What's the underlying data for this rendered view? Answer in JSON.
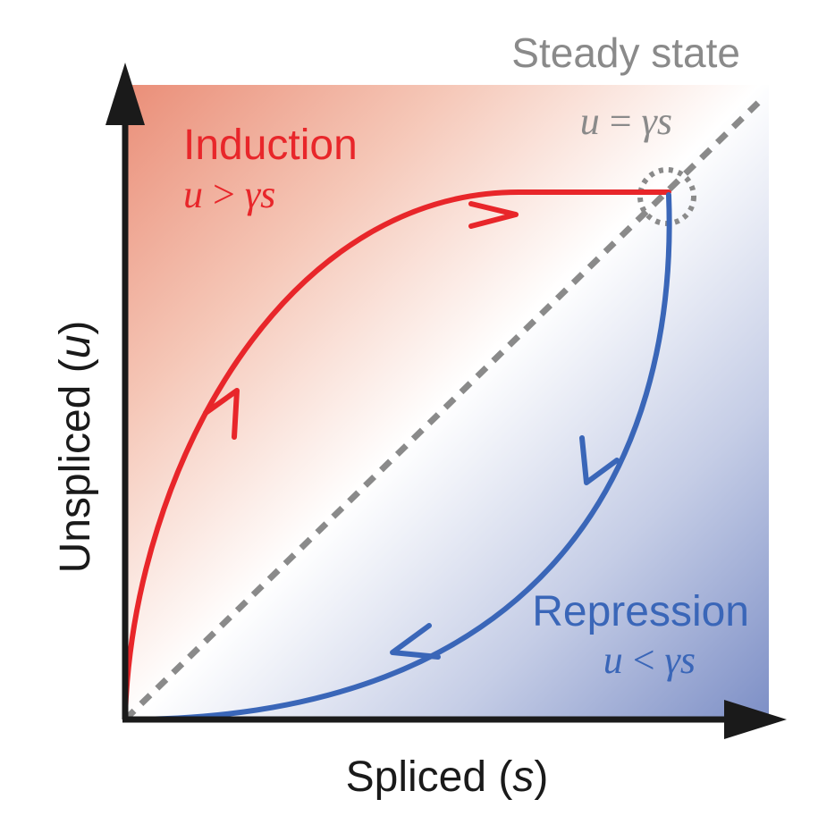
{
  "title": "Steady state",
  "steady_state_equation": {
    "lhs": "u",
    "op": " = ",
    "rhs": "γs"
  },
  "induction": {
    "label": "Induction",
    "lhs": "u",
    "op": " > ",
    "rhs": "γs"
  },
  "repression": {
    "label": "Repression",
    "lhs": "u",
    "op": " < ",
    "rhs": "γs"
  },
  "axes": {
    "y_label_prefix": "Unspliced (",
    "y_label_var": "u",
    "y_label_suffix": ")",
    "x_label_prefix": "Spliced (",
    "x_label_var": "s",
    "x_label_suffix": ")"
  },
  "colors": {
    "induction": "#e8262a",
    "repression": "#3a66b8",
    "steady_state": "#8a8a8a",
    "axis": "#1a1a1a",
    "gradient_red": "#ea8e78",
    "gradient_blue": "#7d8fc6"
  }
}
